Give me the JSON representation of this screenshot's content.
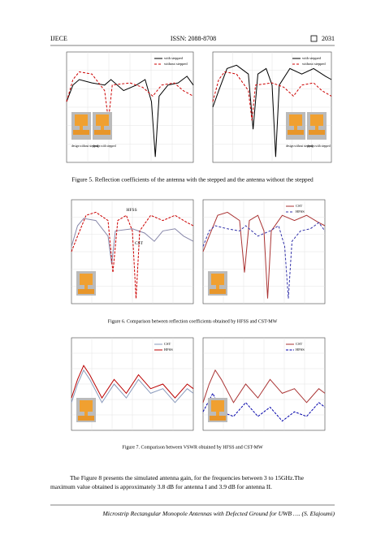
{
  "header": {
    "journal": "IJECE",
    "issn": "ISSN: 2088-8708",
    "page": "2031"
  },
  "figures": [
    {
      "caption": "Figure 5. Reflection coefficients of the antenna with the stepped and the antenna without the stepped",
      "panels": [
        {
          "legend": [
            "with stepped",
            "without stepped"
          ],
          "insets": [
            "design without stepped",
            "design with stepped"
          ]
        },
        {
          "legend": [
            "with stepped",
            "without stepped"
          ],
          "insets": [
            "design without stepped",
            "design with stepped"
          ]
        }
      ]
    },
    {
      "caption": "Figure 6. Comparison between reflection coefficients obtained by HFSS and CST-MW",
      "panels": [
        {
          "annotations": [
            "HFSS",
            "CST"
          ]
        },
        {
          "legend": [
            "CST",
            "HFSS"
          ]
        }
      ]
    },
    {
      "caption": "Figure 7. Comparison between VSWR obtained by HFSS and CST-MW",
      "panels": [
        {
          "legend": [
            "CST",
            "HFSS"
          ]
        },
        {
          "legend": [
            "CST",
            "HFSS"
          ]
        }
      ]
    }
  ],
  "paragraph": [
    "The Figure 8 presents the simulated antenna gain, for the frequencies between 3 to 15GHz.The",
    "maximum value obtained is approximately 3.8 dB for antenna I and 3.9 dB for antenna II."
  ],
  "footer": "Microstrip Rectangular Monopole Antennas with Defected Ground for UWB …. (S. Elajoumi)"
}
